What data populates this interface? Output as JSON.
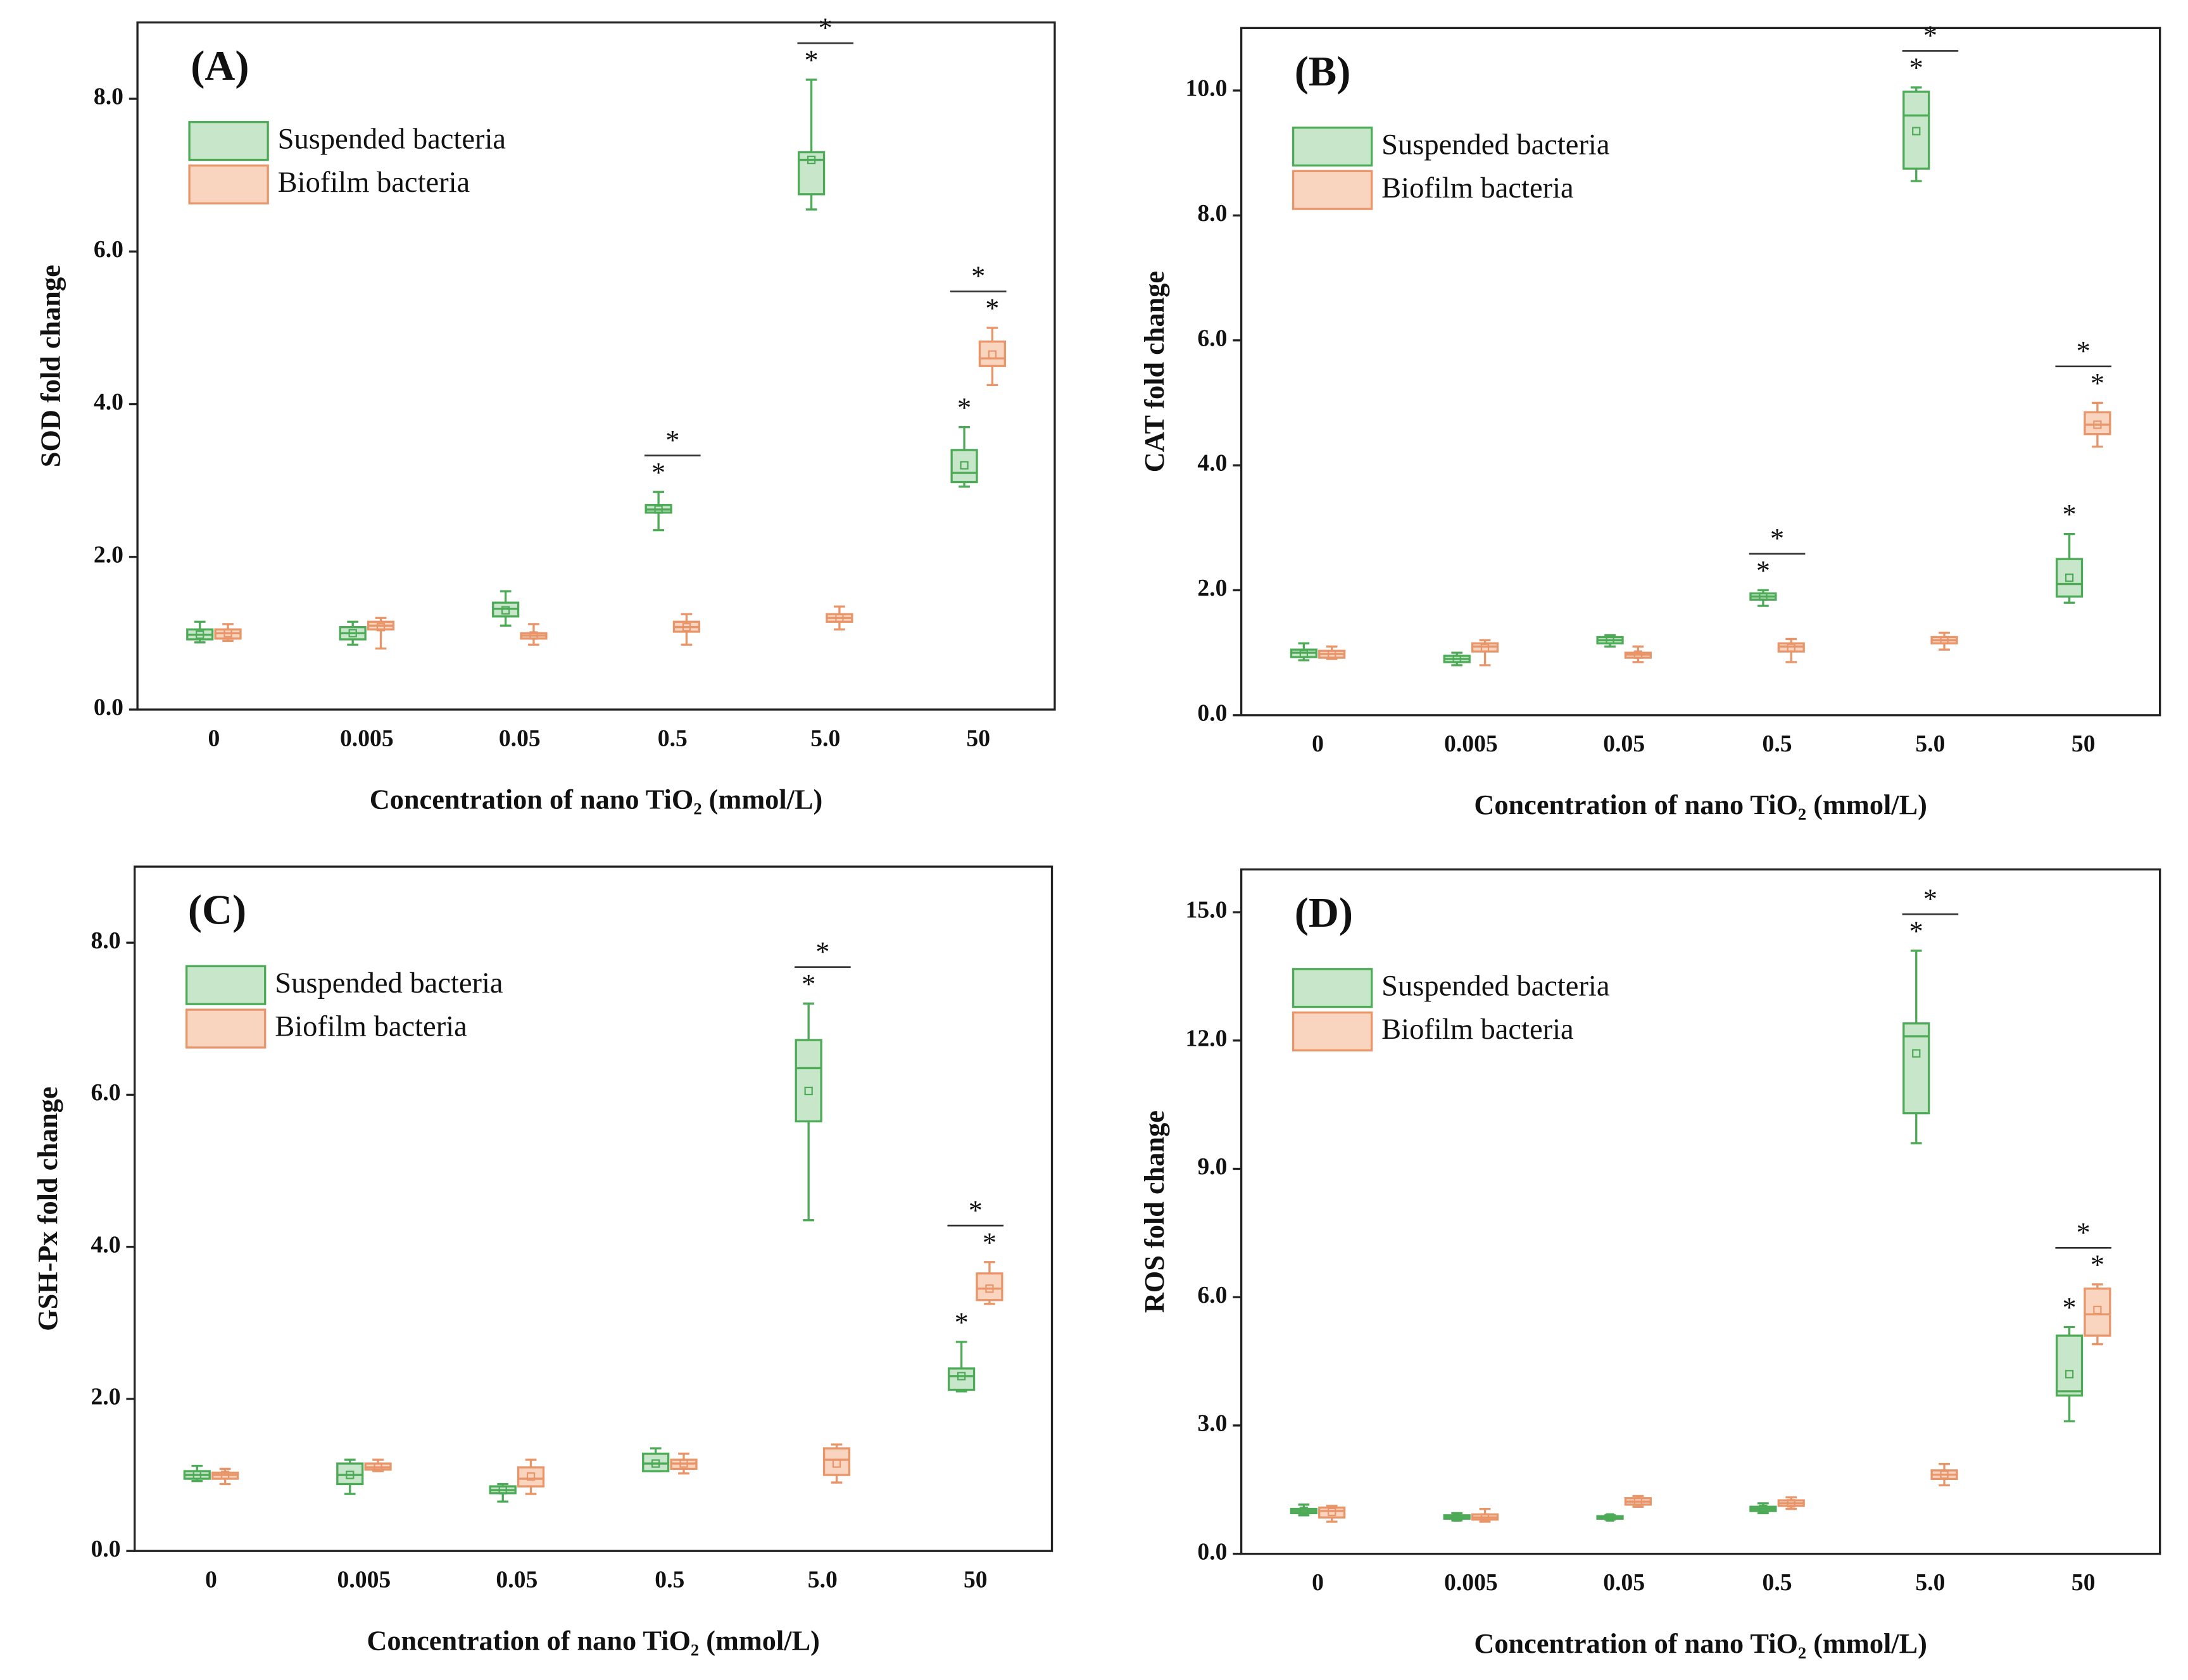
{
  "chart_data": [
    {
      "type": "box",
      "title": "(A)",
      "xlabel": "Concentration of nano TiO₂ (mmol/L)",
      "ylabel": "SOD fold change",
      "categories": [
        "0",
        "0.005",
        "0.05",
        "0.5",
        "5.0",
        "50"
      ],
      "ylim": [
        0,
        9.0
      ],
      "yticks": [
        {
          "value": 0,
          "label": "0.0"
        },
        {
          "value": 2,
          "label": "2.0"
        },
        {
          "value": 4,
          "label": "4.0"
        },
        {
          "value": 6,
          "label": "6.0"
        },
        {
          "value": 8,
          "label": "8.0"
        }
      ],
      "legend": "upper left",
      "series": [
        {
          "name": "Suspended bacteria",
          "color": "#4daa57",
          "fill": "#c8e6c9",
          "min": [
            0.88,
            0.85,
            1.1,
            2.35,
            6.55,
            2.92
          ],
          "q1": [
            0.92,
            0.92,
            1.22,
            2.58,
            6.75,
            2.98
          ],
          "median": [
            0.98,
            1.0,
            1.32,
            2.62,
            7.2,
            3.1
          ],
          "q3": [
            1.05,
            1.08,
            1.4,
            2.68,
            7.3,
            3.4
          ],
          "max": [
            1.15,
            1.15,
            1.55,
            2.85,
            8.25,
            3.7
          ],
          "mean": [
            0.98,
            1.0,
            1.3,
            2.62,
            7.2,
            3.2
          ],
          "significance": [
            null,
            null,
            null,
            "*",
            "*",
            "*"
          ]
        },
        {
          "name": "Biofilm bacteria",
          "color": "#e8956a",
          "fill": "#f9d5c0",
          "min": [
            0.9,
            0.8,
            0.85,
            0.85,
            1.05,
            4.25
          ],
          "q1": [
            0.93,
            1.05,
            0.93,
            1.02,
            1.15,
            4.5
          ],
          "median": [
            1.0,
            1.1,
            0.97,
            1.08,
            1.2,
            4.6
          ],
          "q3": [
            1.05,
            1.15,
            1.0,
            1.15,
            1.25,
            4.82
          ],
          "max": [
            1.12,
            1.2,
            1.12,
            1.25,
            1.35,
            5.0
          ],
          "mean": [
            1.0,
            1.08,
            0.97,
            1.08,
            1.2,
            4.65
          ],
          "significance": [
            null,
            null,
            null,
            null,
            null,
            "*"
          ]
        }
      ],
      "bracket_significance": [
        null,
        null,
        null,
        "*",
        "*",
        "*"
      ]
    },
    {
      "type": "box",
      "title": "(B)",
      "xlabel": "Concentration of nano TiO₂ (mmol/L)",
      "ylabel": "CAT fold change",
      "categories": [
        "0",
        "0.005",
        "0.05",
        "0.5",
        "5.0",
        "50"
      ],
      "ylim": [
        0,
        11.0
      ],
      "yticks": [
        {
          "value": 0,
          "label": "0.0"
        },
        {
          "value": 2,
          "label": "2.0"
        },
        {
          "value": 4,
          "label": "4.0"
        },
        {
          "value": 6,
          "label": "6.0"
        },
        {
          "value": 8,
          "label": "8.0"
        },
        {
          "value": 10,
          "label": "10.0"
        }
      ],
      "legend": "upper left",
      "series": [
        {
          "name": "Suspended bacteria",
          "color": "#4daa57",
          "fill": "#c8e6c9",
          "min": [
            0.88,
            0.8,
            1.1,
            1.75,
            8.55,
            1.8
          ],
          "q1": [
            0.93,
            0.85,
            1.15,
            1.85,
            8.75,
            1.9
          ],
          "median": [
            1.0,
            0.9,
            1.2,
            1.9,
            9.6,
            2.1
          ],
          "q3": [
            1.05,
            0.95,
            1.25,
            1.95,
            9.98,
            2.5
          ],
          "max": [
            1.15,
            1.0,
            1.28,
            2.0,
            10.05,
            2.9
          ],
          "mean": [
            0.98,
            0.9,
            1.2,
            1.9,
            9.35,
            2.2
          ],
          "significance": [
            null,
            null,
            null,
            "*",
            "*",
            "*"
          ]
        },
        {
          "name": "Biofilm bacteria",
          "color": "#e8956a",
          "fill": "#f9d5c0",
          "min": [
            0.9,
            0.8,
            0.85,
            0.85,
            1.05,
            4.3
          ],
          "q1": [
            0.92,
            1.02,
            0.92,
            1.02,
            1.15,
            4.5
          ],
          "median": [
            0.98,
            1.1,
            0.97,
            1.1,
            1.2,
            4.65
          ],
          "q3": [
            1.03,
            1.15,
            1.0,
            1.15,
            1.25,
            4.85
          ],
          "max": [
            1.1,
            1.2,
            1.1,
            1.22,
            1.32,
            5.0
          ],
          "mean": [
            0.97,
            1.08,
            0.97,
            1.08,
            1.2,
            4.65
          ],
          "significance": [
            null,
            null,
            null,
            null,
            null,
            "*"
          ]
        }
      ],
      "bracket_significance": [
        null,
        null,
        null,
        "*",
        "*",
        "*"
      ]
    },
    {
      "type": "box",
      "title": "(C)",
      "xlabel": "Concentration of nano TiO₂ (mmol/L)",
      "ylabel": "GSH-Px fold change",
      "categories": [
        "0",
        "0.005",
        "0.05",
        "0.5",
        "5.0",
        "50"
      ],
      "ylim": [
        0,
        9.0
      ],
      "yticks": [
        {
          "value": 0,
          "label": "0.0"
        },
        {
          "value": 2,
          "label": "2.0"
        },
        {
          "value": 4,
          "label": "4.0"
        },
        {
          "value": 6,
          "label": "6.0"
        },
        {
          "value": 8,
          "label": "8.0"
        }
      ],
      "legend": "upper left",
      "series": [
        {
          "name": "Suspended bacteria",
          "color": "#4daa57",
          "fill": "#c8e6c9",
          "min": [
            0.92,
            0.75,
            0.65,
            1.05,
            4.35,
            2.1
          ],
          "q1": [
            0.95,
            0.88,
            0.76,
            1.05,
            5.65,
            2.12
          ],
          "median": [
            1.0,
            1.0,
            0.8,
            1.15,
            6.35,
            2.3
          ],
          "q3": [
            1.05,
            1.15,
            0.85,
            1.28,
            6.72,
            2.4
          ],
          "max": [
            1.12,
            1.2,
            0.88,
            1.35,
            7.2,
            2.75
          ],
          "mean": [
            1.0,
            1.0,
            0.8,
            1.15,
            6.05,
            2.3
          ],
          "significance": [
            null,
            null,
            null,
            null,
            "*",
            "*"
          ]
        },
        {
          "name": "Biofilm bacteria",
          "color": "#e8956a",
          "fill": "#f9d5c0",
          "min": [
            0.88,
            1.05,
            0.75,
            1.02,
            0.9,
            3.25
          ],
          "q1": [
            0.95,
            1.07,
            0.85,
            1.08,
            1.0,
            3.3
          ],
          "median": [
            1.0,
            1.1,
            0.95,
            1.15,
            1.2,
            3.45
          ],
          "q3": [
            1.03,
            1.15,
            1.1,
            1.2,
            1.35,
            3.65
          ],
          "max": [
            1.08,
            1.2,
            1.2,
            1.28,
            1.4,
            3.8
          ],
          "mean": [
            1.0,
            1.1,
            0.98,
            1.15,
            1.15,
            3.45
          ],
          "significance": [
            null,
            null,
            null,
            null,
            null,
            "*"
          ]
        }
      ],
      "bracket_significance": [
        null,
        null,
        null,
        null,
        "*",
        "*"
      ]
    },
    {
      "type": "box",
      "title": "(D)",
      "xlabel": "Concentration of nano TiO₂ (mmol/L)",
      "ylabel": "ROS fold change",
      "categories": [
        "0",
        "0.005",
        "0.05",
        "0.5",
        "5.0",
        "50"
      ],
      "ylim": [
        0,
        16.0
      ],
      "yticks": [
        {
          "value": 0,
          "label": "0.0"
        },
        {
          "value": 3,
          "label": "3.0"
        },
        {
          "value": 6,
          "label": "6.0"
        },
        {
          "value": 9,
          "label": "9.0"
        },
        {
          "value": 12,
          "label": "12.0"
        },
        {
          "value": 15,
          "label": "15.0"
        }
      ],
      "legend": "upper left",
      "series": [
        {
          "name": "Suspended bacteria",
          "color": "#4daa57",
          "fill": "#c8e6c9",
          "min": [
            0.9,
            0.78,
            0.8,
            0.95,
            9.6,
            3.1
          ],
          "q1": [
            0.95,
            0.82,
            0.82,
            1.0,
            10.3,
            3.7
          ],
          "median": [
            1.0,
            0.85,
            0.85,
            1.05,
            12.1,
            3.8
          ],
          "q3": [
            1.05,
            0.9,
            0.88,
            1.1,
            12.4,
            5.1
          ],
          "max": [
            1.15,
            0.95,
            0.9,
            1.18,
            14.1,
            5.3
          ],
          "mean": [
            1.0,
            0.85,
            0.85,
            1.05,
            11.7,
            4.2
          ],
          "significance": [
            null,
            null,
            null,
            null,
            "*",
            "*"
          ]
        },
        {
          "name": "Biofilm bacteria",
          "color": "#e8956a",
          "fill": "#f9d5c0",
          "min": [
            0.75,
            0.75,
            1.1,
            1.05,
            1.6,
            4.9
          ],
          "q1": [
            0.85,
            0.8,
            1.15,
            1.12,
            1.75,
            5.1
          ],
          "median": [
            1.0,
            0.85,
            1.22,
            1.18,
            1.85,
            5.6
          ],
          "q3": [
            1.08,
            0.92,
            1.3,
            1.25,
            1.95,
            6.2
          ],
          "max": [
            1.12,
            1.05,
            1.35,
            1.32,
            2.1,
            6.3
          ],
          "mean": [
            0.98,
            0.85,
            1.22,
            1.18,
            1.85,
            5.7
          ],
          "significance": [
            null,
            null,
            null,
            null,
            null,
            "*"
          ]
        }
      ],
      "bracket_significance": [
        null,
        null,
        null,
        null,
        "*",
        "*"
      ]
    }
  ]
}
